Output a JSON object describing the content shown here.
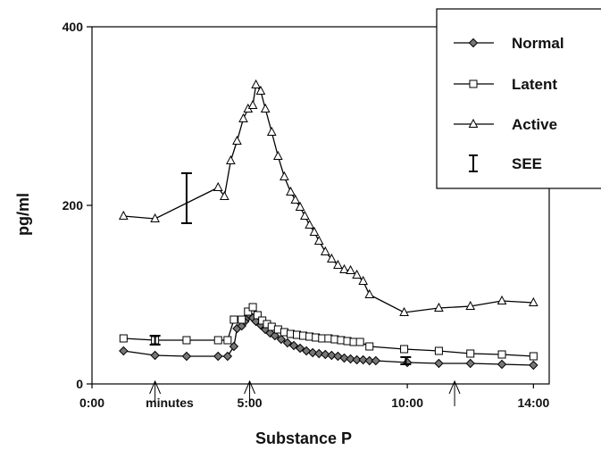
{
  "chart_data": {
    "type": "line",
    "title": "",
    "xlabel": "Substance P",
    "ylabel": "pg/ml",
    "x_unit_note": "minutes",
    "xlim": [
      0,
      14.5
    ],
    "ylim": [
      0,
      400
    ],
    "x_tick_labels": [
      {
        "x": 0,
        "label": "0:00"
      },
      {
        "x": 5,
        "label": "5:00"
      },
      {
        "x": 10,
        "label": "10:00"
      },
      {
        "x": 14,
        "label": "14:00"
      }
    ],
    "y_ticks": [
      0,
      200,
      400
    ],
    "grid": false,
    "legend_position": "top-right",
    "arrow_marks_x": [
      2,
      5,
      11.5
    ],
    "series": [
      {
        "name": "Normal",
        "marker": "diamond",
        "x": [
          1,
          2,
          3,
          4,
          4.3,
          4.5,
          4.6,
          4.75,
          4.85,
          4.95,
          5,
          5.1,
          5.2,
          5.35,
          5.5,
          5.65,
          5.8,
          6,
          6.2,
          6.4,
          6.6,
          6.8,
          7,
          7.2,
          7.4,
          7.6,
          7.8,
          8,
          8.2,
          8.4,
          8.6,
          8.8,
          9,
          10,
          11,
          12,
          13,
          14
        ],
        "y": [
          37,
          32,
          31,
          31,
          31,
          42,
          62,
          65,
          70,
          75,
          77,
          74,
          70,
          66,
          61,
          57,
          54,
          50,
          46,
          43,
          40,
          37,
          35,
          34,
          33,
          32,
          31,
          29,
          28,
          27,
          27,
          26,
          26,
          24,
          23,
          23,
          22,
          21
        ]
      },
      {
        "name": "Latent",
        "marker": "square",
        "x": [
          1,
          2,
          3,
          4,
          4.3,
          4.5,
          4.75,
          4.95,
          5.1,
          5.25,
          5.4,
          5.55,
          5.7,
          5.9,
          6.1,
          6.3,
          6.5,
          6.7,
          6.9,
          7.1,
          7.3,
          7.5,
          7.7,
          7.9,
          8.1,
          8.3,
          8.5,
          8.8,
          9.9,
          11,
          12,
          13,
          14
        ],
        "y": [
          51,
          49,
          49,
          49,
          49,
          72,
          72,
          81,
          86,
          77,
          71,
          67,
          64,
          61,
          58,
          56,
          55,
          54,
          53,
          52,
          51,
          51,
          50,
          49,
          48,
          47,
          47,
          42,
          39,
          37,
          34,
          33,
          31
        ]
      },
      {
        "name": "Active",
        "marker": "triangle",
        "x": [
          1,
          2,
          4,
          4.2,
          4.4,
          4.6,
          4.8,
          4.95,
          5.1,
          5.2,
          5.35,
          5.5,
          5.7,
          5.9,
          6.1,
          6.3,
          6.45,
          6.6,
          6.75,
          6.9,
          7.05,
          7.2,
          7.4,
          7.6,
          7.8,
          8,
          8.2,
          8.4,
          8.6,
          8.8,
          9.9,
          11,
          12,
          13,
          14
        ],
        "y": [
          188,
          185,
          220,
          210,
          250,
          272,
          297,
          308,
          312,
          335,
          328,
          308,
          282,
          255,
          232,
          215,
          206,
          198,
          188,
          178,
          170,
          160,
          148,
          140,
          133,
          128,
          127,
          122,
          115,
          100,
          80,
          85,
          87,
          93,
          91
        ]
      }
    ],
    "error_bars": [
      {
        "x": 3,
        "y": 208,
        "err": 28
      },
      {
        "x": 2,
        "y": 49,
        "err": 5
      },
      {
        "x": 9.95,
        "y": 26,
        "err": 4
      }
    ],
    "legend": [
      {
        "label": "Normal",
        "marker": "diamond"
      },
      {
        "label": "Latent",
        "marker": "square"
      },
      {
        "label": "Active",
        "marker": "triangle"
      },
      {
        "label": "SEE",
        "marker": "errorbar"
      }
    ]
  }
}
